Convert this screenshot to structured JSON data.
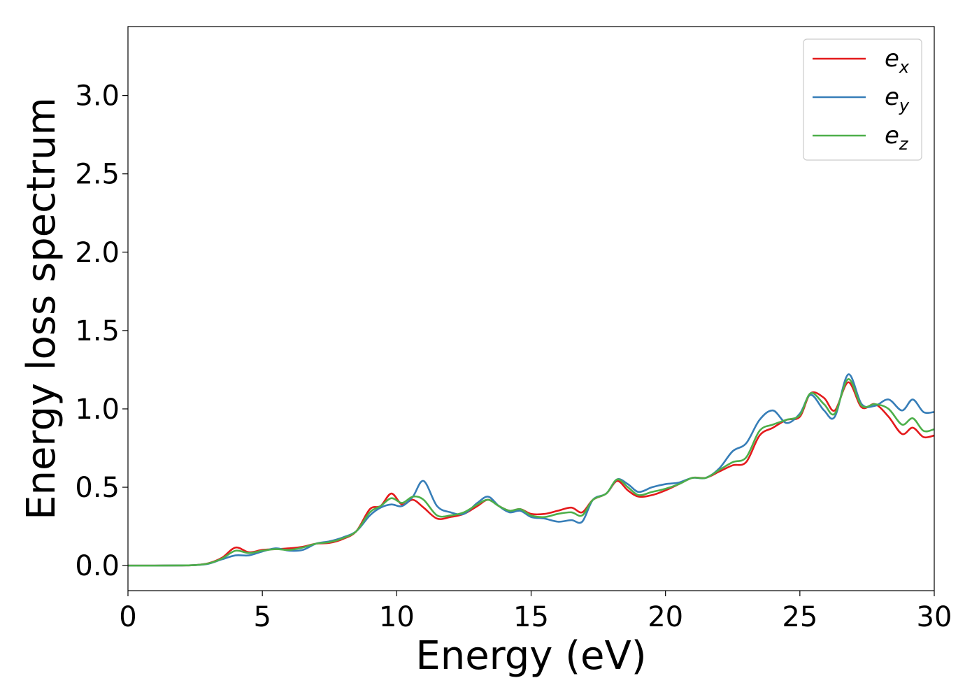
{
  "chart_data": {
    "type": "line",
    "title": "",
    "xlabel": "Energy (eV)",
    "ylabel": "Energy loss spectrum",
    "xlim": [
      0,
      30
    ],
    "ylim": [
      -0.16,
      3.44
    ],
    "xticks": [
      0,
      5,
      10,
      15,
      20,
      25,
      30
    ],
    "xtick_labels": [
      "0",
      "5",
      "10",
      "15",
      "20",
      "25",
      "30"
    ],
    "yticks": [
      0.0,
      0.5,
      1.0,
      1.5,
      2.0,
      2.5,
      3.0
    ],
    "ytick_labels": [
      "0.0",
      "0.5",
      "1.0",
      "1.5",
      "2.0",
      "2.5",
      "3.0"
    ],
    "grid": false,
    "legend_position": "top-right",
    "series": [
      {
        "name": "e_x",
        "label_base": "e",
        "label_sub": "x",
        "color": "#e41a1c",
        "x": [
          0,
          1,
          2,
          2.5,
          3,
          3.5,
          4.0,
          4.5,
          5,
          5.5,
          6,
          6.5,
          7,
          7.5,
          8,
          8.5,
          9.0,
          9.4,
          9.8,
          10.2,
          10.6,
          11.0,
          11.5,
          12.0,
          12.5,
          13.0,
          13.4,
          13.8,
          14.2,
          14.6,
          15.0,
          15.5,
          16.0,
          16.5,
          16.9,
          17.3,
          17.8,
          18.2,
          18.6,
          19.0,
          19.5,
          20.0,
          20.5,
          21.0,
          21.5,
          22.0,
          22.5,
          23.0,
          23.5,
          24.0,
          24.5,
          25.0,
          25.4,
          25.9,
          26.3,
          26.8,
          27.3,
          27.8,
          28.3,
          28.8,
          29.2,
          29.6,
          30.0
        ],
        "y": [
          0,
          0,
          0.001,
          0.003,
          0.015,
          0.05,
          0.115,
          0.085,
          0.1,
          0.105,
          0.11,
          0.12,
          0.14,
          0.145,
          0.17,
          0.22,
          0.36,
          0.38,
          0.46,
          0.39,
          0.42,
          0.37,
          0.3,
          0.31,
          0.33,
          0.38,
          0.42,
          0.38,
          0.35,
          0.36,
          0.33,
          0.33,
          0.35,
          0.37,
          0.34,
          0.42,
          0.46,
          0.54,
          0.48,
          0.44,
          0.45,
          0.48,
          0.52,
          0.56,
          0.56,
          0.6,
          0.64,
          0.66,
          0.83,
          0.88,
          0.93,
          0.95,
          1.1,
          1.07,
          0.99,
          1.17,
          1.01,
          1.03,
          0.95,
          0.84,
          0.88,
          0.82,
          0.83
        ]
      },
      {
        "name": "e_y",
        "label_base": "e",
        "label_sub": "y",
        "color": "#377eb8",
        "x": [
          0,
          1,
          2,
          2.5,
          3,
          3.5,
          4.0,
          4.5,
          5,
          5.5,
          6,
          6.5,
          7,
          7.5,
          8,
          8.5,
          9.0,
          9.4,
          9.8,
          10.2,
          10.6,
          11.0,
          11.5,
          12.0,
          12.5,
          13.0,
          13.4,
          13.8,
          14.2,
          14.6,
          15.0,
          15.5,
          16.0,
          16.5,
          16.9,
          17.3,
          17.8,
          18.2,
          18.6,
          19.0,
          19.5,
          20.0,
          20.5,
          21.0,
          21.5,
          22.0,
          22.5,
          23.0,
          23.5,
          24.0,
          24.5,
          25.0,
          25.4,
          25.9,
          26.3,
          26.8,
          27.3,
          27.8,
          28.3,
          28.8,
          29.2,
          29.6,
          30.0
        ],
        "y": [
          0,
          0,
          0.001,
          0.003,
          0.012,
          0.04,
          0.065,
          0.065,
          0.09,
          0.11,
          0.095,
          0.1,
          0.14,
          0.155,
          0.18,
          0.22,
          0.32,
          0.37,
          0.39,
          0.38,
          0.44,
          0.54,
          0.38,
          0.34,
          0.33,
          0.4,
          0.44,
          0.38,
          0.34,
          0.35,
          0.31,
          0.3,
          0.28,
          0.29,
          0.28,
          0.42,
          0.46,
          0.55,
          0.52,
          0.47,
          0.5,
          0.52,
          0.53,
          0.56,
          0.56,
          0.62,
          0.73,
          0.78,
          0.93,
          0.99,
          0.91,
          0.97,
          1.09,
          0.99,
          0.95,
          1.22,
          1.03,
          1.02,
          1.06,
          0.99,
          1.06,
          0.98,
          0.98
        ]
      },
      {
        "name": "e_z",
        "label_base": "e",
        "label_sub": "z",
        "color": "#4daf4a",
        "x": [
          0,
          1,
          2,
          2.5,
          3,
          3.5,
          4.0,
          4.5,
          5,
          5.5,
          6,
          6.5,
          7,
          7.5,
          8,
          8.5,
          9.0,
          9.4,
          9.8,
          10.2,
          10.6,
          11.0,
          11.5,
          12.0,
          12.5,
          13.0,
          13.4,
          13.8,
          14.2,
          14.6,
          15.0,
          15.5,
          16.0,
          16.5,
          16.9,
          17.3,
          17.8,
          18.2,
          18.6,
          19.0,
          19.5,
          20.0,
          20.5,
          21.0,
          21.5,
          22.0,
          22.5,
          23.0,
          23.5,
          24.0,
          24.5,
          25.0,
          25.4,
          25.9,
          26.3,
          26.8,
          27.3,
          27.8,
          28.3,
          28.8,
          29.2,
          29.6,
          30.0
        ],
        "y": [
          0,
          0,
          0.001,
          0.003,
          0.014,
          0.045,
          0.095,
          0.08,
          0.095,
          0.105,
          0.1,
          0.115,
          0.14,
          0.15,
          0.175,
          0.22,
          0.34,
          0.38,
          0.43,
          0.4,
          0.44,
          0.42,
          0.32,
          0.32,
          0.34,
          0.39,
          0.42,
          0.38,
          0.35,
          0.36,
          0.32,
          0.31,
          0.33,
          0.34,
          0.32,
          0.42,
          0.46,
          0.55,
          0.5,
          0.45,
          0.47,
          0.49,
          0.52,
          0.56,
          0.56,
          0.61,
          0.66,
          0.69,
          0.86,
          0.9,
          0.93,
          0.96,
          1.1,
          1.03,
          0.97,
          1.19,
          1.02,
          1.03,
          1.0,
          0.9,
          0.94,
          0.86,
          0.87
        ]
      }
    ]
  }
}
